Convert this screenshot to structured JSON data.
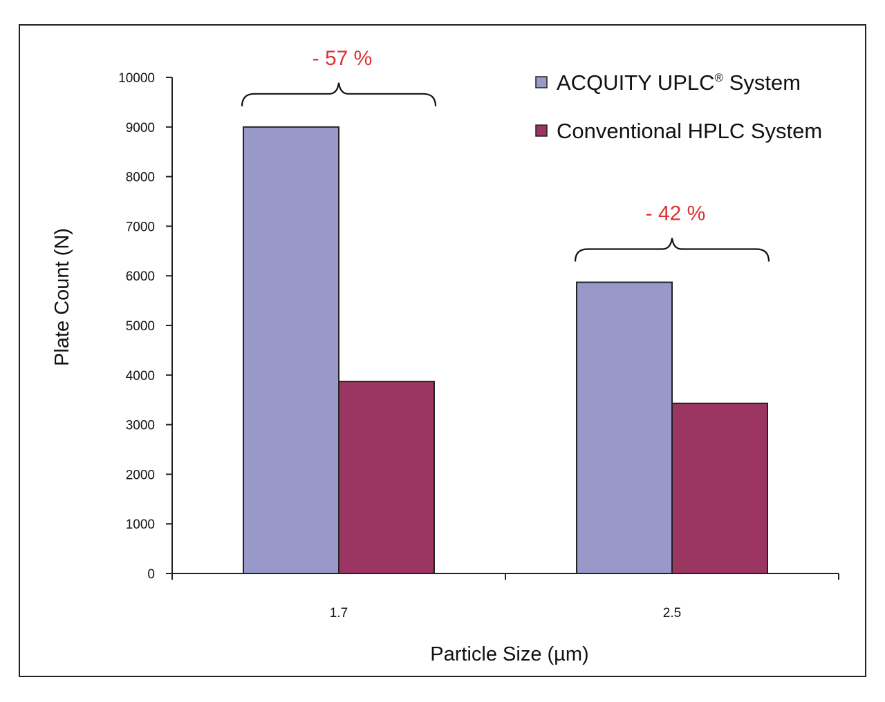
{
  "chart_data": {
    "type": "bar",
    "categories": [
      "1.7",
      "2.5"
    ],
    "series": [
      {
        "name": "ACQUITY UPLC® System",
        "values": [
          9000,
          5870
        ],
        "color": "#9898c9"
      },
      {
        "name": "Conventional HPLC System",
        "values": [
          3870,
          3430
        ],
        "color": "#9b3562"
      }
    ],
    "xlabel": "Particle Size (µm)",
    "ylabel": "Plate Count (N)",
    "ylim": [
      0,
      10000
    ],
    "yticks": [
      0,
      1000,
      2000,
      3000,
      4000,
      5000,
      6000,
      7000,
      8000,
      9000,
      10000
    ],
    "ytick_labels": [
      "0",
      "1000",
      "2000",
      "3000",
      "4000",
      "5000",
      "6000",
      "7000",
      "8000",
      "9000",
      "10000"
    ],
    "legend_position": "top-right",
    "grid": false,
    "annotations": [
      {
        "text": "- 57 %",
        "category": "1.7",
        "color": "#e03030"
      },
      {
        "text": "- 42 %",
        "category": "2.5",
        "color": "#e03030"
      }
    ],
    "legend": {
      "uplc_main": "ACQUITY UPLC",
      "uplc_sup": "®",
      "uplc_rest": " System",
      "hplc": "Conventional HPLC System"
    }
  }
}
